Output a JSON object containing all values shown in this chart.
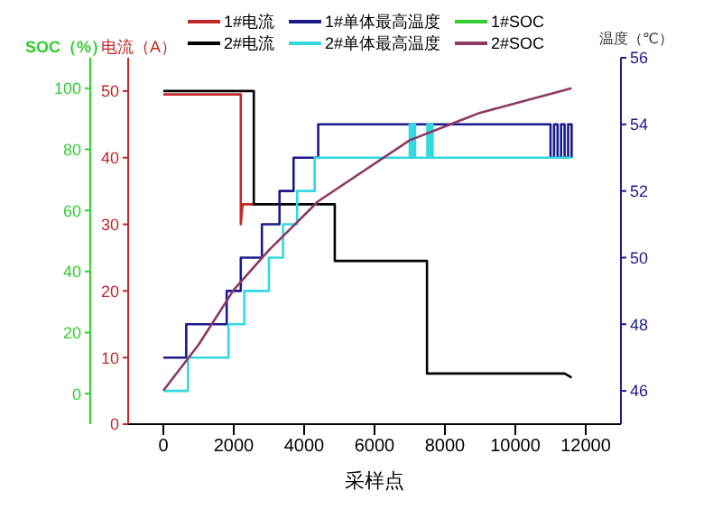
{
  "chart_data": {
    "type": "line",
    "xlabel": "采样点",
    "ylabel": "电流（A）",
    "y2label": "温度（℃）",
    "y3label": "SOC（%）",
    "xlim": [
      -1000,
      13000
    ],
    "xticks": [
      0,
      2000,
      4000,
      6000,
      8000,
      10000,
      12000
    ],
    "ylim": [
      0,
      55
    ],
    "yticks": [
      0,
      10,
      20,
      30,
      40,
      50
    ],
    "y2lim": [
      45,
      56
    ],
    "y2ticks": [
      46,
      48,
      50,
      52,
      54,
      56
    ],
    "y3lim": [
      -10,
      110
    ],
    "y3ticks": [
      0,
      20,
      40,
      60,
      80,
      100
    ],
    "legend": "top",
    "series": [
      {
        "name": "1#电流",
        "color": "#c0282a",
        "x": [
          0,
          2200,
          2200,
          2250,
          2600
        ],
        "values": [
          49.5,
          49.5,
          30,
          33,
          33
        ]
      },
      {
        "name": "2#电流",
        "color": "#000000",
        "x": [
          0,
          2570,
          2570,
          4870,
          4870,
          7490,
          7490,
          11400,
          11600
        ],
        "values": [
          50,
          50,
          33,
          33,
          24.5,
          24.5,
          7.6,
          7.6,
          7
        ]
      },
      {
        "name": "1#单体最高温度",
        "type": "step",
        "axis": "y2",
        "color": "#1a1a8c",
        "x": [
          0,
          650,
          1800,
          2200,
          2800,
          3300,
          3700,
          4400,
          11000,
          11100,
          11200,
          11300,
          11400,
          11500,
          11600
        ],
        "values": [
          47,
          48,
          49,
          50,
          51,
          52,
          53,
          54,
          53,
          54,
          53,
          54,
          53,
          54,
          53
        ]
      },
      {
        "name": "2#单体最高温度",
        "type": "step",
        "axis": "y2",
        "color": "#33d9e0",
        "x": [
          0,
          700,
          1850,
          2300,
          3000,
          3400,
          3800,
          4300,
          7000,
          7050,
          7100,
          7150,
          7500,
          7550,
          7600,
          7650,
          11600
        ],
        "values": [
          46,
          47,
          48,
          49,
          50,
          51,
          52,
          53,
          54,
          53,
          54,
          53,
          54,
          53,
          54,
          53,
          53
        ]
      },
      {
        "name": "1#SOC",
        "axis": "y3",
        "color": "#33cc33"
      },
      {
        "name": "2#SOC",
        "axis": "y3",
        "color": "#8b3a62",
        "x": [
          0,
          1000,
          2000,
          3000,
          4400,
          7000,
          9000,
          11600
        ],
        "values": [
          1,
          16,
          34,
          47,
          63,
          83,
          92,
          100
        ]
      }
    ]
  }
}
